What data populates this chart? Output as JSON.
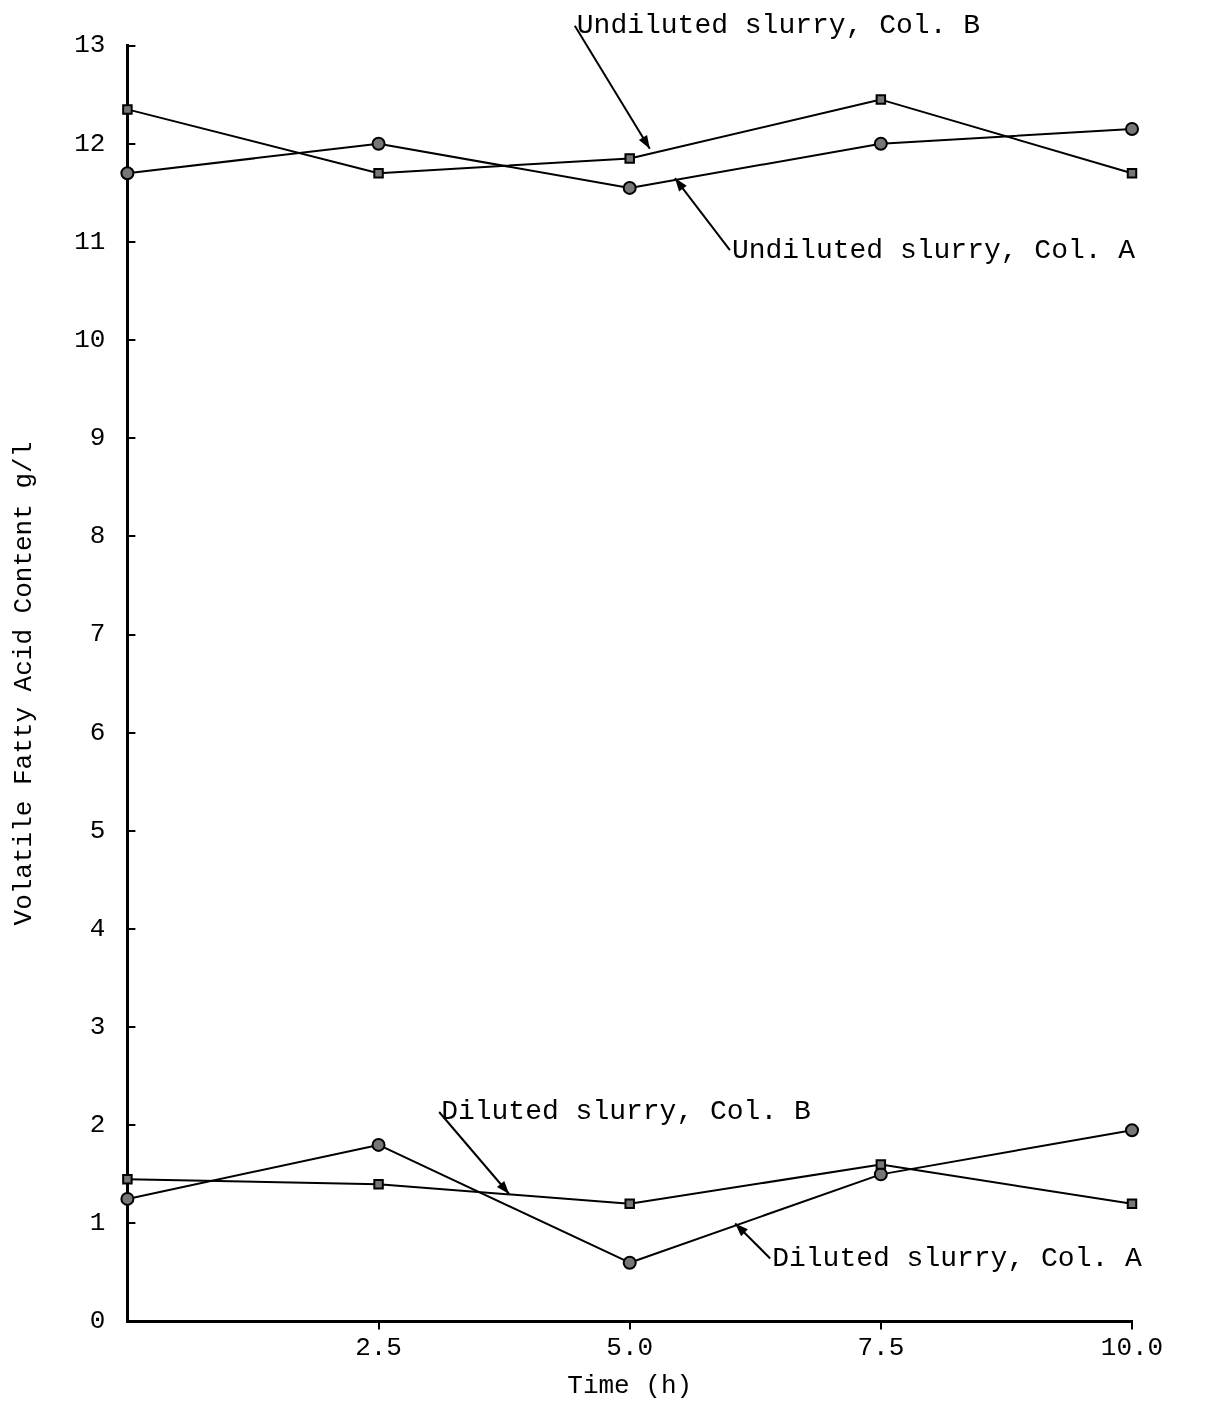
{
  "chart_data": {
    "type": "line",
    "xlabel": "Time (h)",
    "ylabel": "Volatile Fatty Acid Content g/l",
    "x": [
      0,
      2.5,
      5,
      7.5,
      10
    ],
    "series": [
      {
        "color": "#000000",
        "marker": "square",
        "values": [
          12.35,
          11.7,
          11.85,
          12.45,
          11.7
        ]
      },
      {
        "color": "#000000",
        "marker": "circle",
        "values": [
          11.7,
          12.0,
          11.55,
          12.0,
          12.15
        ]
      },
      {
        "color": "#000000",
        "marker": "square",
        "values": [
          1.45,
          1.4,
          1.2,
          1.6,
          1.2
        ]
      },
      {
        "color": "#000000",
        "marker": "circle",
        "values": [
          1.25,
          1.8,
          0.6,
          1.5,
          1.95
        ]
      }
    ],
    "xlim": [
      0,
      10
    ],
    "xticks": [
      {
        "value": 2.5,
        "label": "2.5"
      },
      {
        "value": 5,
        "label": "5.0"
      },
      {
        "value": 7.5,
        "label": "7.5"
      },
      {
        "value": 10,
        "label": "10.0"
      }
    ],
    "ylim": [
      0,
      13
    ],
    "yticks": [
      0,
      1,
      2,
      3,
      4,
      5,
      6,
      7,
      8,
      9,
      10,
      11,
      12,
      13
    ],
    "grid": false,
    "legend": false,
    "annotations": [
      {
        "text": "Undiluted slurry, Col. B",
        "x": 5.2,
        "y": 11.95
      },
      {
        "text": "Undiluted slurry, Col. A",
        "x": 5.45,
        "y": 11.65
      },
      {
        "text": "Diluted slurry, Col. B",
        "x": 3.8,
        "y": 1.3
      },
      {
        "text": "Diluted slurry, Col. A",
        "x": 6.05,
        "y": 1.0
      }
    ]
  }
}
